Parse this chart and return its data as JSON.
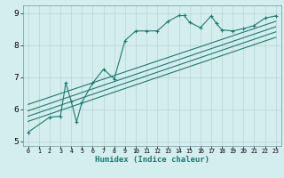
{
  "xlabel": "Humidex (Indice chaleur)",
  "bg_color": "#d4edef",
  "line_color": "#1e7a6e",
  "grid_color": "#b5d5d5",
  "xlim": [
    -0.5,
    23.5
  ],
  "ylim": [
    4.85,
    9.25
  ],
  "xticks": [
    0,
    1,
    2,
    3,
    4,
    5,
    6,
    7,
    8,
    9,
    10,
    11,
    12,
    13,
    14,
    15,
    16,
    17,
    18,
    19,
    20,
    21,
    22,
    23
  ],
  "yticks": [
    5,
    6,
    7,
    8,
    9
  ],
  "zigzag_x": [
    0,
    2,
    3,
    3.5,
    4,
    4.5,
    5,
    6,
    7,
    8,
    9,
    10,
    11,
    12,
    13,
    14,
    14.5,
    15,
    16,
    17,
    17.5,
    18,
    19,
    20,
    21,
    22,
    23
  ],
  "zigzag_y": [
    5.28,
    5.75,
    5.78,
    6.82,
    6.25,
    5.6,
    6.22,
    6.82,
    7.25,
    6.95,
    8.15,
    8.45,
    8.45,
    8.45,
    8.75,
    8.93,
    8.93,
    8.72,
    8.55,
    8.92,
    8.68,
    8.48,
    8.45,
    8.52,
    8.62,
    8.85,
    8.92
  ],
  "line1_x": [
    0,
    23
  ],
  "line1_y": [
    6.15,
    8.75
  ],
  "line2_x": [
    0,
    23
  ],
  "line2_y": [
    5.95,
    8.58
  ],
  "line3_x": [
    0,
    23
  ],
  "line3_y": [
    5.78,
    8.42
  ],
  "line4_x": [
    0,
    23
  ],
  "line4_y": [
    5.62,
    8.25
  ]
}
